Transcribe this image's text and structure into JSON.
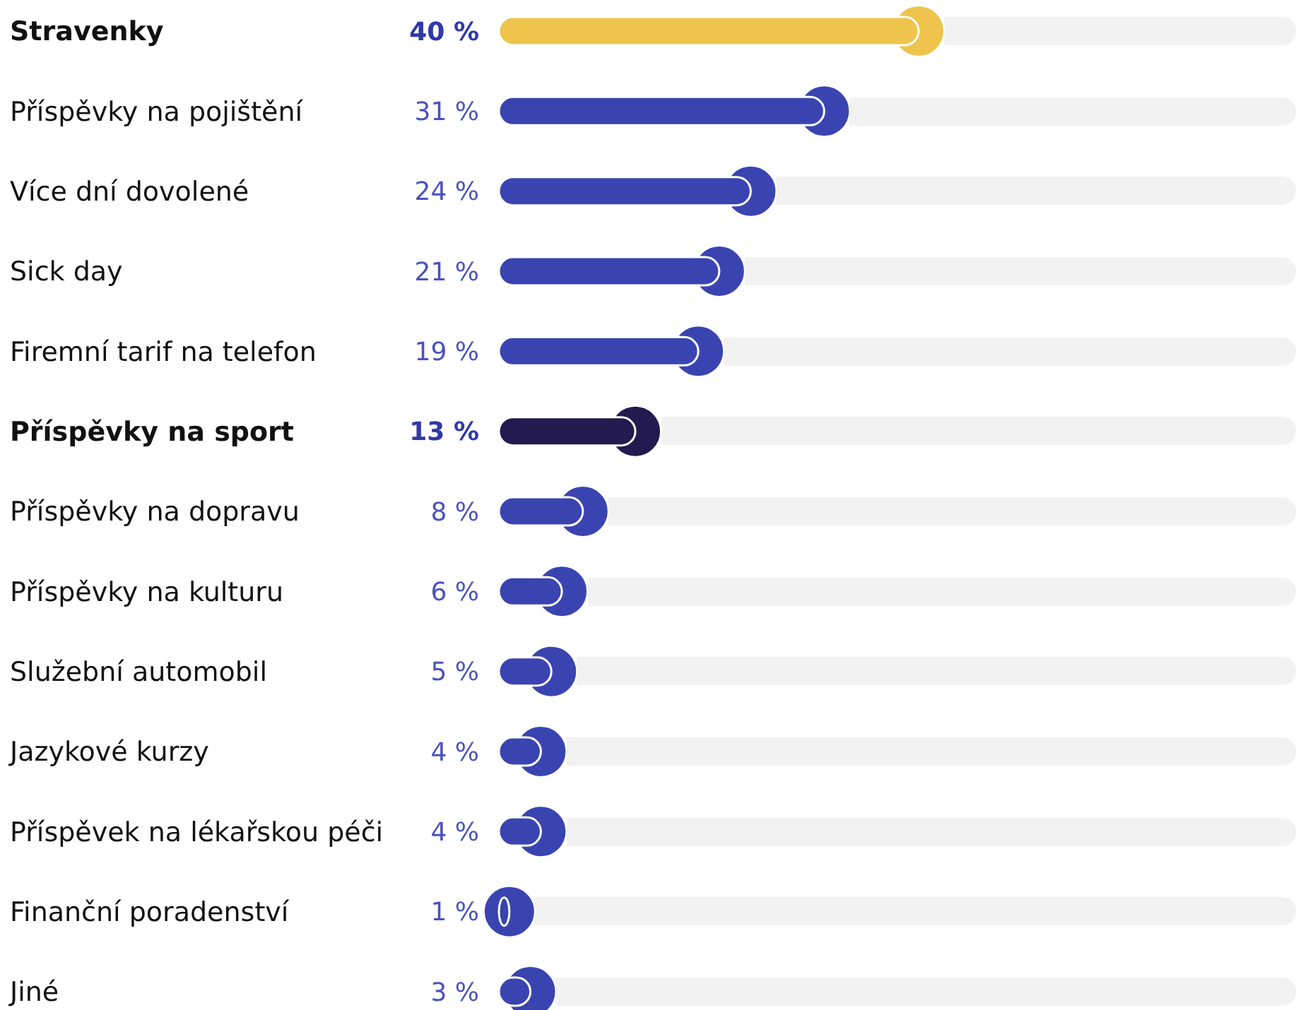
{
  "chart_data": {
    "type": "bar",
    "orientation": "horizontal",
    "categories": [
      "Stravenky",
      "Příspěvky na pojištění",
      "Více dní dovolené",
      "Sick day",
      "Firemní tarif na telefon",
      "Příspěvky na sport",
      "Příspěvky na dopravu",
      "Příspěvky na kulturu",
      "Služební automobil",
      "Jazykové kurzy",
      "Příspěvek na lékařskou péči",
      "Finanční poradenství",
      "Jiné"
    ],
    "values": [
      40,
      31,
      24,
      21,
      19,
      13,
      8,
      6,
      5,
      4,
      4,
      1,
      3
    ],
    "value_labels": [
      "40 %",
      "31 %",
      "24 %",
      "21 %",
      "19 %",
      "13 %",
      "8 %",
      "6 %",
      "5 %",
      "4 %",
      "4 %",
      "1 %",
      "3 %"
    ],
    "colors": [
      "#efc44d",
      "#3a44b1",
      "#3a44b1",
      "#3a44b1",
      "#3a44b1",
      "#231a4f",
      "#3a44b1",
      "#3a44b1",
      "#3a44b1",
      "#3a44b1",
      "#3a44b1",
      "#3a44b1",
      "#3a44b1"
    ]
  }
}
